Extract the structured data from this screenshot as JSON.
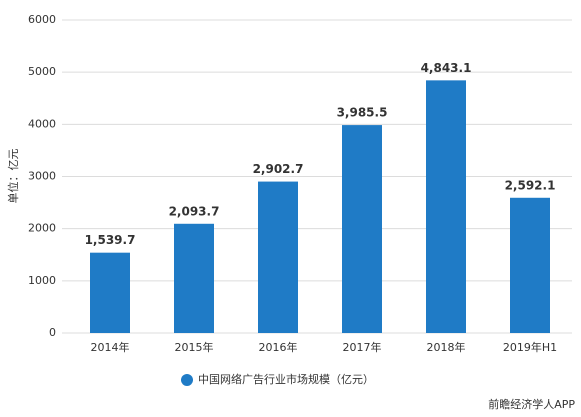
{
  "chart_data": {
    "type": "bar",
    "y_label": "单位：亿元",
    "categories": [
      "2014年",
      "2015年",
      "2016年",
      "2017年",
      "2018年",
      "2019年H1"
    ],
    "series": [
      {
        "name": "中国网络广告行业市场规模（亿元）",
        "color": "#1f7bc6",
        "values": [
          1539.7,
          2093.7,
          2902.7,
          3985.5,
          4843.1,
          2592.1
        ],
        "value_labels": [
          "1,539.7",
          "2,093.7",
          "2,902.7",
          "3,985.5",
          "4,843.1",
          "2,592.1"
        ]
      }
    ],
    "ylim": [
      0,
      6000
    ],
    "yticks": [
      0,
      1000,
      2000,
      3000,
      4000,
      5000,
      6000
    ],
    "grid": true,
    "source": "前瞻经济学人APP"
  }
}
